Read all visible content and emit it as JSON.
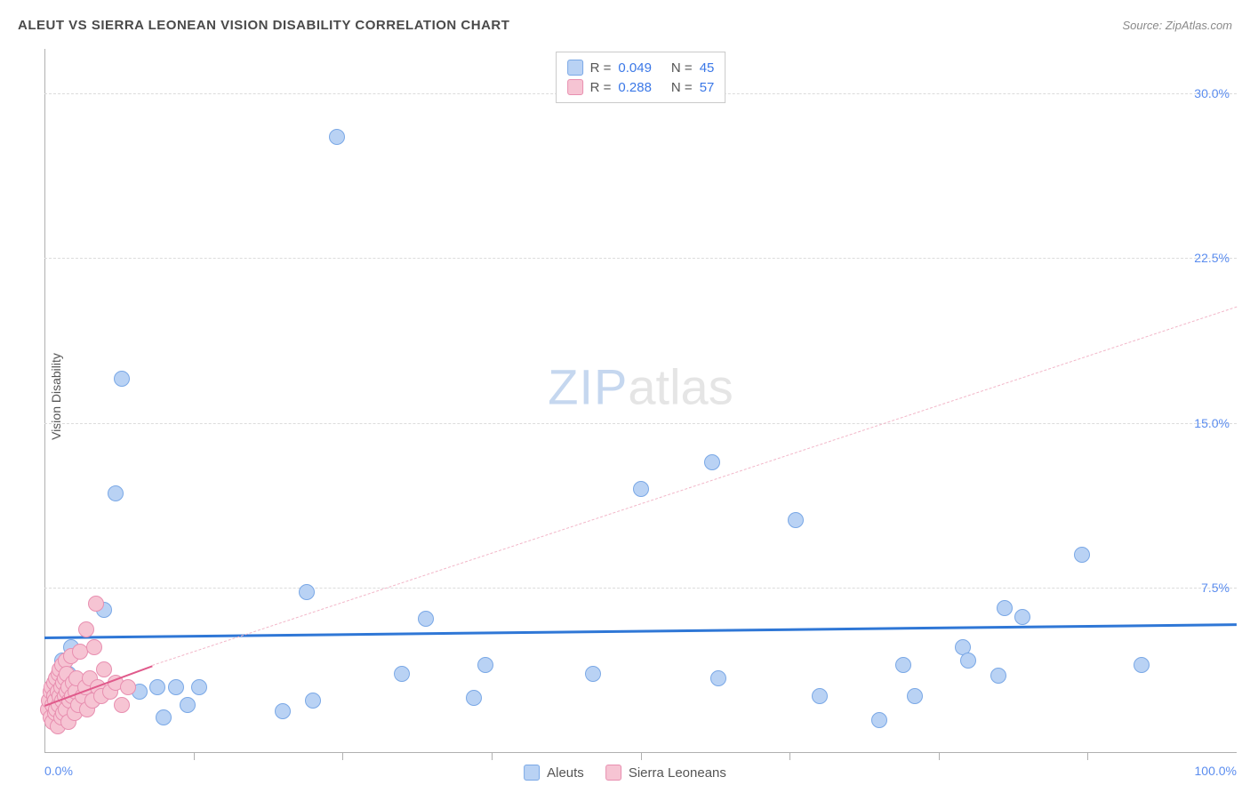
{
  "title": "ALEUT VS SIERRA LEONEAN VISION DISABILITY CORRELATION CHART",
  "source": "Source: ZipAtlas.com",
  "y_axis_label": "Vision Disability",
  "watermark": {
    "zip": "ZIP",
    "atlas": "atlas"
  },
  "chart": {
    "type": "scatter",
    "background_color": "#ffffff",
    "grid_color": "#dcdcdc",
    "axis_color": "#b0b0b0",
    "xlim": [
      0,
      100
    ],
    "ylim": [
      0,
      32
    ],
    "y_ticks": [
      {
        "value": 7.5,
        "label": "7.5%"
      },
      {
        "value": 15.0,
        "label": "15.0%"
      },
      {
        "value": 22.5,
        "label": "22.5%"
      },
      {
        "value": 30.0,
        "label": "30.0%"
      }
    ],
    "x_tick_positions": [
      12.5,
      25,
      37.5,
      50,
      62.5,
      75,
      87.5
    ],
    "x_labels": {
      "min": "0.0%",
      "max": "100.0%"
    },
    "series": [
      {
        "name": "Aleuts",
        "color_fill": "#b9d2f4",
        "color_stroke": "#7aa8e6",
        "marker_radius": 9,
        "legend_swatch": "#b9d2f4",
        "R": "0.049",
        "N": "45",
        "trend": {
          "x1": 0,
          "y1": 5.3,
          "x2": 100,
          "y2": 5.9,
          "color": "#2f77d6",
          "width": 3,
          "dash": "solid"
        },
        "points": [
          [
            0.5,
            2.5
          ],
          [
            0.8,
            3.0
          ],
          [
            1.0,
            2.0
          ],
          [
            1.2,
            3.4
          ],
          [
            1.5,
            4.2
          ],
          [
            1.8,
            2.2
          ],
          [
            2.0,
            3.6
          ],
          [
            2.2,
            4.8
          ],
          [
            2.5,
            3.0
          ],
          [
            2.8,
            2.6
          ],
          [
            3.5,
            3.1
          ],
          [
            4.0,
            2.4
          ],
          [
            5.0,
            6.5
          ],
          [
            6.0,
            11.8
          ],
          [
            6.5,
            17.0
          ],
          [
            8.0,
            2.8
          ],
          [
            9.5,
            3.0
          ],
          [
            10.0,
            1.6
          ],
          [
            11.0,
            3.0
          ],
          [
            12.0,
            2.2
          ],
          [
            13.0,
            3.0
          ],
          [
            20.0,
            1.9
          ],
          [
            22.0,
            7.3
          ],
          [
            22.5,
            2.4
          ],
          [
            24.5,
            28.0
          ],
          [
            30.0,
            3.6
          ],
          [
            32.0,
            6.1
          ],
          [
            36.0,
            2.5
          ],
          [
            37.0,
            4.0
          ],
          [
            46.0,
            3.6
          ],
          [
            50.0,
            12.0
          ],
          [
            56.0,
            13.2
          ],
          [
            56.5,
            3.4
          ],
          [
            63.0,
            10.6
          ],
          [
            65.0,
            2.6
          ],
          [
            70.0,
            1.5
          ],
          [
            72.0,
            4.0
          ],
          [
            73.0,
            2.6
          ],
          [
            77.0,
            4.8
          ],
          [
            77.5,
            4.2
          ],
          [
            80.0,
            3.5
          ],
          [
            80.5,
            6.6
          ],
          [
            82.0,
            6.2
          ],
          [
            87.0,
            9.0
          ],
          [
            92.0,
            4.0
          ]
        ]
      },
      {
        "name": "Sierra Leoneans",
        "color_fill": "#f6c4d3",
        "color_stroke": "#e88fb0",
        "marker_radius": 9,
        "legend_swatch": "#f6c4d3",
        "R": "0.288",
        "N": "57",
        "trend_short": {
          "x1": 0,
          "y1": 2.2,
          "x2": 9,
          "y2": 4.0,
          "color": "#e05a8b",
          "width": 2.5,
          "dash": "solid"
        },
        "trend_ext": {
          "x1": 9,
          "y1": 4.0,
          "x2": 100,
          "y2": 20.3,
          "color": "#f2b6c8",
          "width": 1.5,
          "dash": "dashed"
        },
        "points": [
          [
            0.3,
            2.0
          ],
          [
            0.4,
            2.4
          ],
          [
            0.5,
            1.6
          ],
          [
            0.5,
            2.8
          ],
          [
            0.6,
            3.0
          ],
          [
            0.7,
            1.4
          ],
          [
            0.7,
            2.2
          ],
          [
            0.8,
            2.6
          ],
          [
            0.8,
            3.2
          ],
          [
            0.9,
            1.8
          ],
          [
            0.9,
            2.4
          ],
          [
            1.0,
            3.4
          ],
          [
            1.0,
            2.0
          ],
          [
            1.1,
            2.8
          ],
          [
            1.1,
            1.2
          ],
          [
            1.2,
            3.6
          ],
          [
            1.2,
            2.2
          ],
          [
            1.3,
            2.6
          ],
          [
            1.3,
            3.8
          ],
          [
            1.4,
            1.6
          ],
          [
            1.4,
            3.0
          ],
          [
            1.5,
            2.4
          ],
          [
            1.5,
            4.0
          ],
          [
            1.6,
            3.2
          ],
          [
            1.6,
            1.8
          ],
          [
            1.7,
            2.6
          ],
          [
            1.7,
            3.4
          ],
          [
            1.8,
            2.0
          ],
          [
            1.8,
            4.2
          ],
          [
            1.9,
            2.8
          ],
          [
            1.9,
            3.6
          ],
          [
            2.0,
            1.4
          ],
          [
            2.0,
            3.0
          ],
          [
            2.1,
            2.4
          ],
          [
            2.2,
            4.4
          ],
          [
            2.3,
            2.6
          ],
          [
            2.4,
            3.2
          ],
          [
            2.5,
            1.8
          ],
          [
            2.6,
            2.8
          ],
          [
            2.7,
            3.4
          ],
          [
            2.8,
            2.2
          ],
          [
            3.0,
            4.6
          ],
          [
            3.2,
            2.6
          ],
          [
            3.4,
            3.0
          ],
          [
            3.6,
            2.0
          ],
          [
            3.8,
            3.4
          ],
          [
            4.0,
            2.4
          ],
          [
            4.2,
            4.8
          ],
          [
            4.5,
            3.0
          ],
          [
            4.8,
            2.6
          ],
          [
            5.0,
            3.8
          ],
          [
            5.5,
            2.8
          ],
          [
            6.0,
            3.2
          ],
          [
            4.3,
            6.8
          ],
          [
            3.5,
            5.6
          ],
          [
            6.5,
            2.2
          ],
          [
            7.0,
            3.0
          ]
        ]
      }
    ]
  },
  "legend_top": [
    {
      "swatch": "#b9d2f4",
      "stroke": "#7aa8e6",
      "r_label": "R =",
      "r_val": "0.049",
      "n_label": "N =",
      "n_val": "45"
    },
    {
      "swatch": "#f6c4d3",
      "stroke": "#e88fb0",
      "r_label": "R =",
      "r_val": "0.288",
      "n_label": "N =",
      "n_val": "57"
    }
  ],
  "legend_bottom": [
    {
      "swatch": "#b9d2f4",
      "stroke": "#7aa8e6",
      "label": "Aleuts"
    },
    {
      "swatch": "#f6c4d3",
      "stroke": "#e88fb0",
      "label": "Sierra Leoneans"
    }
  ]
}
